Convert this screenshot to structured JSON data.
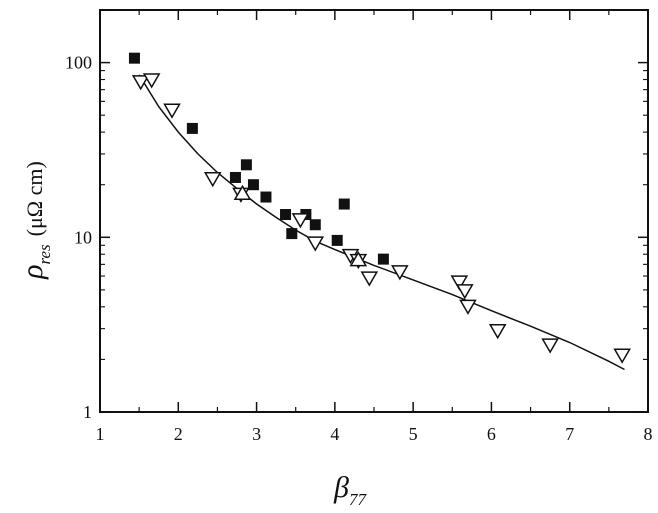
{
  "chart_data": {
    "type": "scatter",
    "title": "",
    "xlabel": {
      "symbol": "β",
      "subscript": "77"
    },
    "ylabel": {
      "symbol": "ρ",
      "subscript": "res",
      "unit": "(μΩ cm)"
    },
    "xlim": [
      1,
      8
    ],
    "ylim": [
      1,
      200
    ],
    "yscale": "log",
    "xticks": [
      "1",
      "2",
      "3",
      "4",
      "5",
      "6",
      "7",
      "8"
    ],
    "yticks": [
      {
        "value": 1,
        "label": "1"
      },
      {
        "value": 10,
        "label": "10"
      },
      {
        "value": 100,
        "label": "100"
      }
    ],
    "grid": false,
    "series": [
      {
        "marker": "filled-square",
        "x": [
          1.44,
          2.18,
          2.73,
          2.87,
          2.96,
          3.12,
          3.37,
          3.45,
          3.63,
          3.75,
          4.03,
          4.12,
          4.62
        ],
        "y": [
          106,
          42,
          22,
          26,
          20,
          17,
          13.5,
          10.5,
          13.5,
          11.8,
          9.6,
          15.5,
          7.5
        ]
      },
      {
        "marker": "open-triangle-down",
        "x": [
          1.52,
          1.66,
          1.92,
          2.44,
          2.8,
          3.56,
          3.75,
          4.2,
          4.3,
          4.44,
          4.83,
          5.59,
          5.66,
          5.7,
          6.08,
          6.75,
          7.67
        ],
        "y": [
          77,
          79,
          53,
          21.5,
          17.5,
          12.5,
          9.2,
          7.8,
          7.3,
          5.8,
          6.3,
          5.5,
          4.9,
          4.0,
          2.9,
          2.4,
          2.1
        ]
      },
      {
        "marker": "open-triangle-up",
        "x": [
          2.82,
          4.3
        ],
        "y": [
          18,
          7.5
        ]
      }
    ],
    "fit_line": {
      "x": [
        1.5,
        1.75,
        2.0,
        2.25,
        2.5,
        2.75,
        3.0,
        3.25,
        3.5,
        3.75,
        4.0,
        4.5,
        5.0,
        5.5,
        6.0,
        6.5,
        7.0,
        7.5,
        7.7
      ],
      "y": [
        85,
        56,
        40,
        30,
        23.5,
        19,
        15.5,
        13,
        11,
        9.5,
        8.5,
        6.9,
        5.7,
        4.7,
        3.8,
        3.1,
        2.5,
        1.95,
        1.75
      ]
    }
  }
}
